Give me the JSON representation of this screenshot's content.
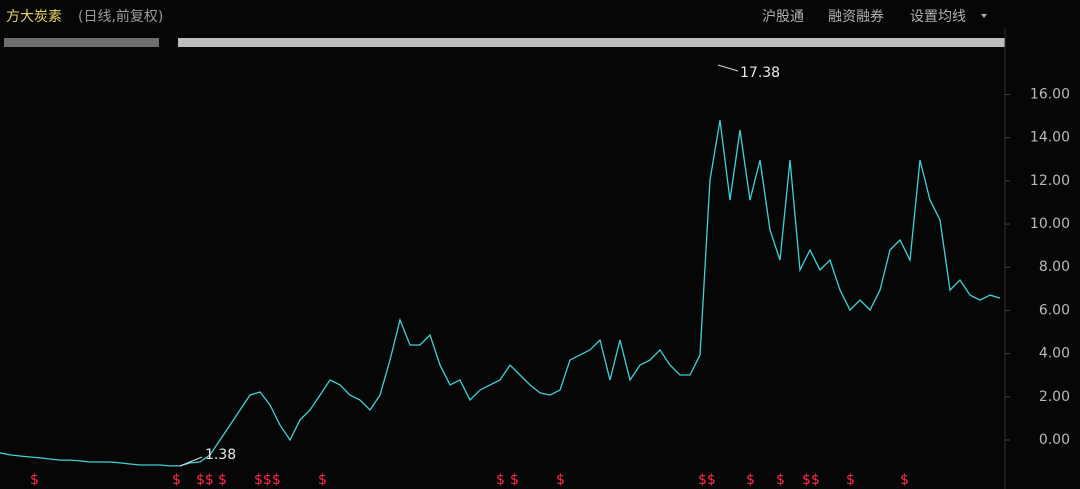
{
  "chart_data": {
    "type": "line",
    "title": "方大炭素",
    "subtitle": "(日线,前复权)",
    "menu": [
      "沪股通",
      "融资融券",
      "设置均线"
    ],
    "annotations": [
      "17.38",
      "1.38"
    ],
    "series": [
      {
        "color": "#3fd3d6",
        "values": [
          -0.6,
          -0.69,
          -0.74,
          -0.79,
          -0.83,
          -0.88,
          -0.93,
          -0.93,
          -0.97,
          -1.02,
          -1.02,
          -1.02,
          -1.06,
          -1.11,
          -1.16,
          -1.16,
          -1.16,
          -1.2,
          -1.2,
          -1.06,
          -1.02,
          -0.69,
          0,
          0.69,
          1.39,
          2.08,
          2.22,
          1.62,
          0.69,
          0,
          0.93,
          1.39,
          2.08,
          2.78,
          2.55,
          2.08,
          1.85,
          1.39,
          2.08,
          3.7,
          5.56,
          4.4,
          4.4,
          4.86,
          3.47,
          2.55,
          2.78,
          1.85,
          2.31,
          2.55,
          2.78,
          3.47,
          3.01,
          2.55,
          2.18,
          2.08,
          2.31,
          3.7,
          3.94,
          4.17,
          4.63,
          2.78,
          4.63,
          2.78,
          3.47,
          3.7,
          4.17,
          3.47,
          3.01,
          3.01,
          3.94,
          12.04,
          14.81,
          11.11,
          14.35,
          11.11,
          12.96,
          9.72,
          8.33,
          12.96,
          7.87,
          8.8,
          7.87,
          8.33,
          6.94,
          6.02,
          6.48,
          6.02,
          6.94,
          8.8,
          9.26,
          8.33,
          12.96,
          11.11,
          10.19,
          6.94,
          7.41,
          6.71,
          6.48,
          6.71,
          6.57
        ]
      }
    ],
    "ylim": [
      -2.27,
      18.06
    ],
    "yticks": [
      {
        "value": 0,
        "label": "0.00"
      },
      {
        "value": 2,
        "label": "2.00"
      },
      {
        "value": 4,
        "label": "4.00"
      },
      {
        "value": 6,
        "label": "6.00"
      },
      {
        "value": 8,
        "label": "8.00"
      },
      {
        "value": 10,
        "label": "10.00"
      },
      {
        "value": 12,
        "label": "12.00"
      },
      {
        "value": 14,
        "label": "14.00"
      },
      {
        "value": 16,
        "label": "16.00"
      }
    ]
  }
}
